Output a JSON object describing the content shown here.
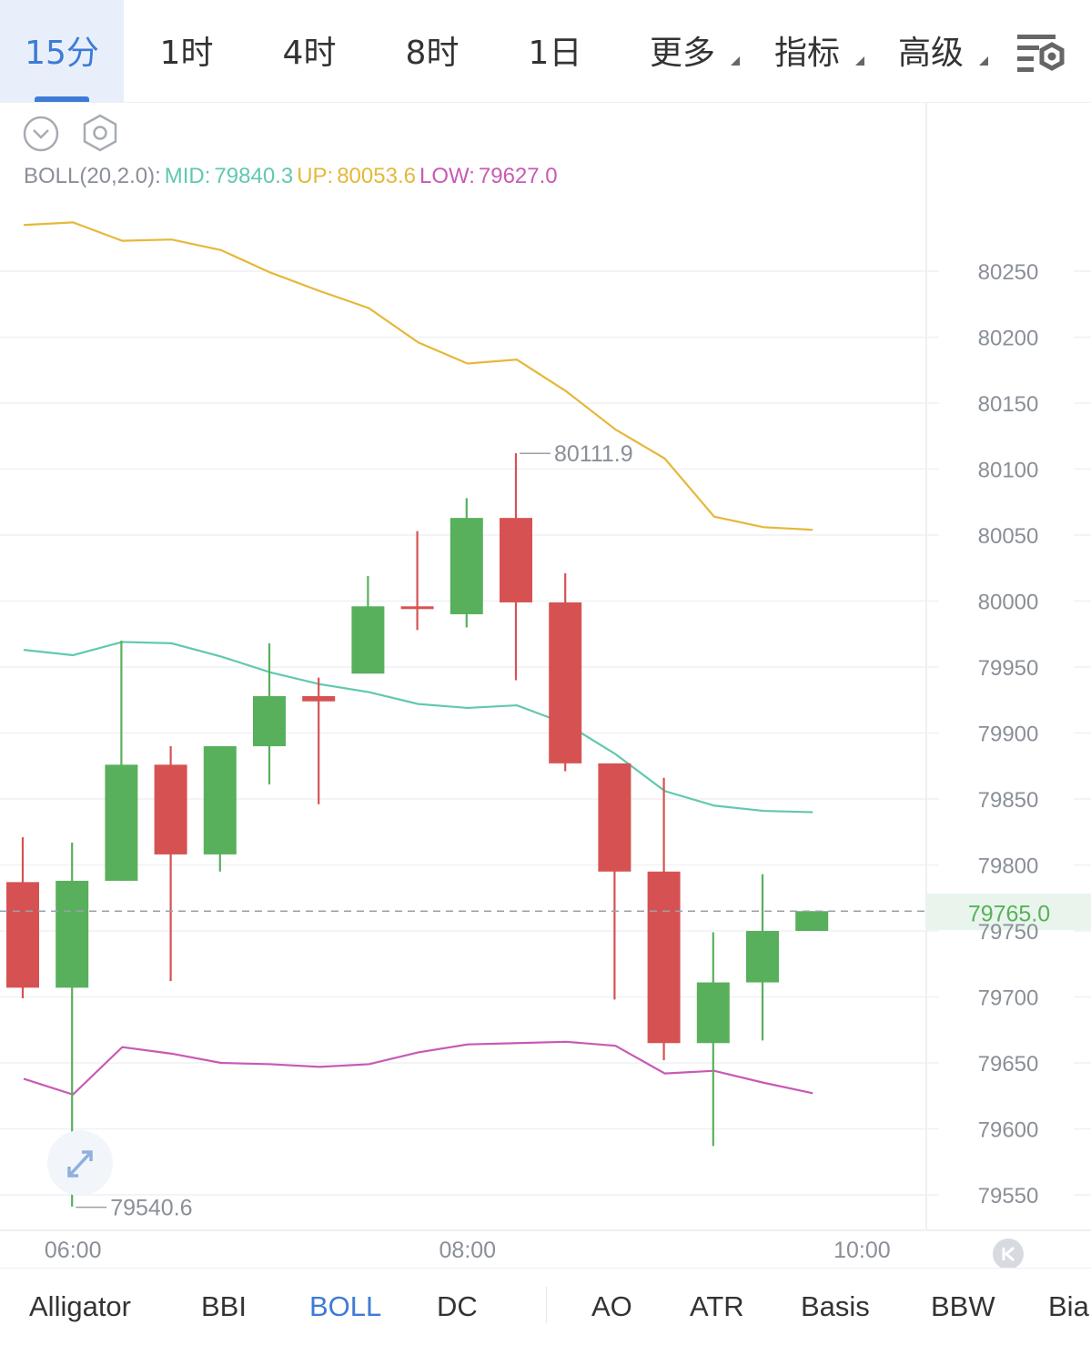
{
  "timeframe_tabs": [
    {
      "label": "15分",
      "active": true
    },
    {
      "label": "1时",
      "active": false
    },
    {
      "label": "4时",
      "active": false
    },
    {
      "label": "8时",
      "active": false
    },
    {
      "label": "1日",
      "active": false
    },
    {
      "label": "更多",
      "dropdown": true
    },
    {
      "label": "指标",
      "dropdown": true
    },
    {
      "label": "高级",
      "dropdown": true
    }
  ],
  "icons": {
    "settings": "chart-settings-icon",
    "collapse": "chevron-down-circle-icon",
    "gear": "hexagon-gear-icon",
    "expand": "expand-arrows-icon",
    "scroll_latest": "scroll-to-latest-icon"
  },
  "legend": {
    "name": "BOLL(20,2.0):",
    "mid_label": "MID:",
    "mid_value": "79840.3",
    "up_label": "UP:",
    "up_value": "80053.6",
    "low_label": "LOW:",
    "low_value": "79627.0"
  },
  "colors": {
    "up_candle": "#58b05c",
    "down_candle": "#d65252",
    "mid_line": "#62c8b0",
    "up_line": "#e5b83a",
    "low_line": "#c85ab4",
    "accent": "#3e7bd6",
    "axis_text": "#8a8f98"
  },
  "chart_data": {
    "type": "candlestick",
    "ylim": [
      79520,
      80305
    ],
    "y_ticks": [
      80250,
      80200,
      80150,
      80100,
      80050,
      80000,
      79950,
      79900,
      79850,
      79800,
      79750,
      79700,
      79650,
      79600,
      79550
    ],
    "x_ticks": [
      {
        "label": "06:00",
        "index": 1
      },
      {
        "label": "08:00",
        "index": 9
      },
      {
        "label": "10:00",
        "index": 17
      }
    ],
    "candles": [
      {
        "open": 79787,
        "high": 79821,
        "low": 79699,
        "close": 79707
      },
      {
        "open": 79707,
        "high": 79817,
        "low": 79541,
        "close": 79788
      },
      {
        "open": 79788,
        "high": 79970,
        "low": 79788,
        "close": 79876
      },
      {
        "open": 79876,
        "high": 79890,
        "low": 79712,
        "close": 79808
      },
      {
        "open": 79808,
        "high": 79888,
        "low": 79795,
        "close": 79890
      },
      {
        "open": 79890,
        "high": 79968,
        "low": 79861,
        "close": 79928
      },
      {
        "open": 79928,
        "high": 79942,
        "low": 79846,
        "close": 79924
      },
      {
        "open": 79945,
        "high": 80019,
        "low": 79945,
        "close": 79996
      },
      {
        "open": 79996,
        "high": 80053,
        "low": 79978,
        "close": 79995
      },
      {
        "open": 79990,
        "high": 80078,
        "low": 79980,
        "close": 80063
      },
      {
        "open": 80063,
        "high": 80112,
        "low": 79940,
        "close": 79999
      },
      {
        "open": 79999,
        "high": 80021,
        "low": 79871,
        "close": 79877
      },
      {
        "open": 79877,
        "high": 79877,
        "low": 79698,
        "close": 79795
      },
      {
        "open": 79795,
        "high": 79866,
        "low": 79652,
        "close": 79665
      },
      {
        "open": 79665,
        "high": 79749,
        "low": 79587,
        "close": 79711
      },
      {
        "open": 79711,
        "high": 79793,
        "low": 79667,
        "close": 79750
      },
      {
        "open": 79750,
        "high": 79765,
        "low": 79750,
        "close": 79765
      }
    ],
    "boll_up": [
      80285,
      80287,
      80273,
      80274,
      80266,
      80249,
      80235,
      80222,
      80196,
      80180,
      80183,
      80159,
      80130,
      80108,
      80064,
      80056,
      80054
    ],
    "boll_mid": [
      79963,
      79959,
      79969,
      79968,
      79958,
      79946,
      79937,
      79931,
      79922,
      79919,
      79921,
      79907,
      79884,
      79856,
      79845,
      79841,
      79840
    ],
    "boll_low": [
      79638,
      79626,
      79662,
      79657,
      79650,
      79649,
      79647,
      79649,
      79658,
      79664,
      79665,
      79666,
      79663,
      79642,
      79644,
      79635,
      79627
    ],
    "marks": {
      "high_label": "80111.9",
      "high_value": 80111.9,
      "high_index": 10,
      "low_label": "79540.6",
      "low_value": 79540.6,
      "low_index": 1
    },
    "last_price": {
      "label": "79765.0",
      "value": 79765
    }
  },
  "bottom_indicators": [
    {
      "label": "Alligator",
      "active": false
    },
    {
      "label": "BBI",
      "active": false
    },
    {
      "label": "BOLL",
      "active": true
    },
    {
      "label": "DC",
      "active": false
    },
    {
      "label": "AO",
      "active": false
    },
    {
      "label": "ATR",
      "active": false
    },
    {
      "label": "Basis",
      "active": false
    },
    {
      "label": "BBW",
      "active": false
    },
    {
      "label": "Bia",
      "active": false
    }
  ]
}
